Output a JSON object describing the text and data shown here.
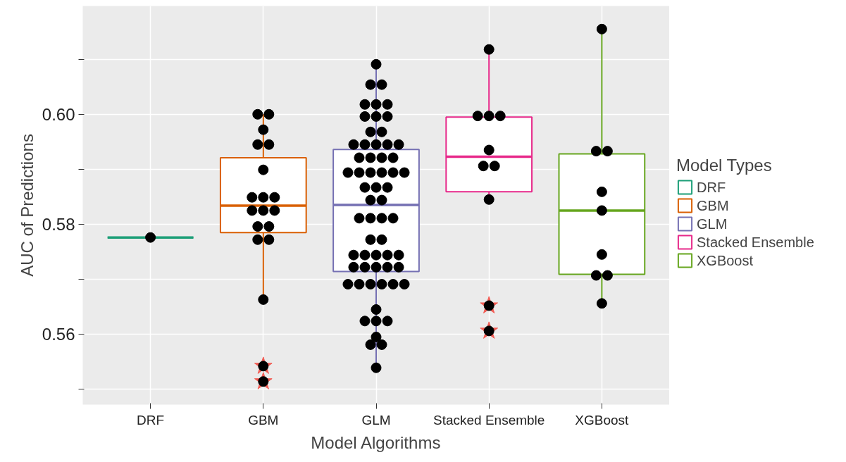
{
  "chart_data": {
    "type": "box",
    "xlabel": "Model Algorithms",
    "ylabel": "AUC of Predictions",
    "legend_title": "Model Types",
    "categories": [
      "DRF",
      "GBM",
      "GLM",
      "Stacked Ensemble",
      "XGBoost"
    ],
    "series": [
      {
        "type": "box",
        "name": "DRF",
        "color": "#1b9e77",
        "x": [
          "DRF"
        ],
        "boxes": [
          {
            "low": 0.5776,
            "q1": 0.5776,
            "median": 0.5776,
            "q3": 0.5776,
            "high": 0.5776
          }
        ]
      },
      {
        "type": "box",
        "name": "GBM",
        "color": "#d95f02",
        "x": [
          "GBM"
        ],
        "boxes": [
          {
            "low": 0.5663,
            "q1": 0.5785,
            "median": 0.5834,
            "q3": 0.5921,
            "high": 0.6,
            "outliers": [
              0.5542,
              0.5514
            ]
          }
        ]
      },
      {
        "type": "box",
        "name": "GLM",
        "color": "#7570b3",
        "x": [
          "GLM"
        ],
        "boxes": [
          {
            "low": 0.5539,
            "q1": 0.5714,
            "median": 0.5835,
            "q3": 0.5936,
            "high": 0.6091
          }
        ]
      },
      {
        "type": "box",
        "name": "Stacked Ensemble",
        "color": "#e7298a",
        "x": [
          "Stacked Ensemble"
        ],
        "boxes": [
          {
            "low": 0.5845,
            "q1": 0.5859,
            "median": 0.5923,
            "q3": 0.5995,
            "high": 0.6118,
            "outliers": [
              0.5652,
              0.5606
            ]
          }
        ]
      },
      {
        "type": "box",
        "name": "XGBoost",
        "color": "#66a61e",
        "x": [
          "XGBoost"
        ],
        "boxes": [
          {
            "low": 0.5656,
            "q1": 0.5709,
            "median": 0.5825,
            "q3": 0.5928,
            "high": 0.6155
          }
        ]
      },
      {
        "type": "scatter",
        "color": "#000000",
        "marker": "circle",
        "x": [
          "DRF",
          "GBM",
          "GBM",
          "GBM",
          "GBM",
          "GBM",
          "GBM",
          "GBM",
          "GBM",
          "GBM",
          "GBM",
          "GBM",
          "GBM",
          "GBM",
          "GBM",
          "GBM",
          "GBM",
          "GBM",
          "GBM",
          "GBM",
          "GLM",
          "GLM",
          "GLM",
          "GLM",
          "GLM",
          "GLM",
          "GLM",
          "GLM",
          "GLM",
          "GLM",
          "GLM",
          "GLM",
          "GLM",
          "GLM",
          "GLM",
          "GLM",
          "GLM",
          "GLM",
          "GLM",
          "GLM",
          "GLM",
          "GLM",
          "GLM",
          "GLM",
          "GLM",
          "GLM",
          "GLM",
          "GLM",
          "GLM",
          "GLM",
          "GLM",
          "GLM",
          "GLM",
          "GLM",
          "GLM",
          "GLM",
          "GLM",
          "GLM",
          "GLM",
          "GLM",
          "GLM",
          "GLM",
          "GLM",
          "GLM",
          "GLM",
          "GLM",
          "GLM",
          "GLM",
          "GLM",
          "GLM",
          "GLM",
          "GLM",
          "GLM",
          "GLM",
          "GLM",
          "GLM",
          "GLM",
          "GLM",
          "GLM",
          "GLM",
          "GLM",
          "Stacked Ensemble",
          "Stacked Ensemble",
          "Stacked Ensemble",
          "Stacked Ensemble",
          "Stacked Ensemble",
          "Stacked Ensemble",
          "Stacked Ensemble",
          "Stacked Ensemble",
          "Stacked Ensemble",
          "Stacked Ensemble",
          "XGBoost",
          "XGBoost",
          "XGBoost",
          "XGBoost",
          "XGBoost",
          "XGBoost",
          "XGBoost",
          "XGBoost",
          "XGBoost"
        ],
        "values": [
          0.5776,
          0.6,
          0.6,
          0.5972,
          0.5945,
          0.5945,
          0.5899,
          0.5849,
          0.5849,
          0.5849,
          0.5825,
          0.5825,
          0.5825,
          0.5796,
          0.5796,
          0.5772,
          0.5772,
          0.5663,
          0.5542,
          0.5514,
          0.6091,
          0.6054,
          0.6054,
          0.6018,
          0.6018,
          0.6018,
          0.5996,
          0.5996,
          0.5996,
          0.5968,
          0.5968,
          0.5945,
          0.5945,
          0.5945,
          0.5945,
          0.5945,
          0.5921,
          0.5921,
          0.5921,
          0.5921,
          0.5894,
          0.5894,
          0.5894,
          0.5894,
          0.5894,
          0.5894,
          0.5867,
          0.5867,
          0.5867,
          0.5844,
          0.5844,
          0.5811,
          0.5811,
          0.5811,
          0.5811,
          0.5772,
          0.5772,
          0.5744,
          0.5744,
          0.5744,
          0.5744,
          0.5744,
          0.5722,
          0.5722,
          0.5722,
          0.5722,
          0.5722,
          0.5691,
          0.5691,
          0.5691,
          0.5691,
          0.5691,
          0.5691,
          0.5645,
          0.5624,
          0.5624,
          0.5624,
          0.5595,
          0.5581,
          0.5581,
          0.5539,
          0.6118,
          0.5997,
          0.5997,
          0.5997,
          0.5935,
          0.5906,
          0.5906,
          0.5845,
          0.5652,
          0.5606,
          0.6155,
          0.5933,
          0.5933,
          0.5859,
          0.5825,
          0.5745,
          0.5707,
          0.5707,
          0.5656
        ]
      }
    ],
    "ylim": [
      0.5472,
      0.6197
    ],
    "yticks": [
      {
        "value": 0.55,
        "label": null
      },
      0.56,
      {
        "value": 0.57,
        "label": null
      },
      0.58,
      {
        "value": 0.59,
        "label": null
      },
      {
        "value": 0.6,
        "label": "0.60"
      },
      {
        "value": 0.61,
        "label": null
      }
    ],
    "grid": true,
    "legend": "right"
  }
}
